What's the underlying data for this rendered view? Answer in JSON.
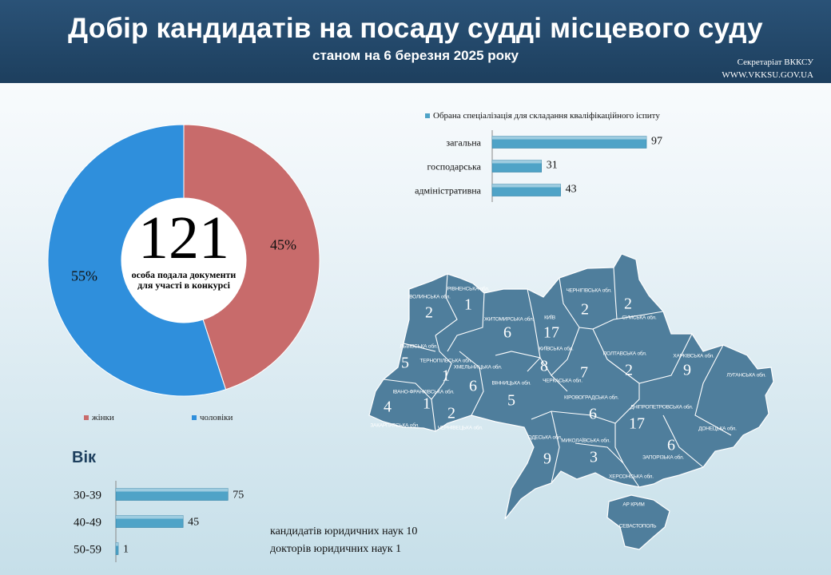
{
  "header": {
    "title": "Добір кандидатів на посаду судді місцевого суду",
    "subtitle": "станом на 6 березня 2025 року",
    "secretariat": "Секретаріат ВККСУ",
    "website": "WWW.VKKSU.GOV.UA"
  },
  "colors": {
    "header": "#1d3f5e",
    "women": "#c86b6b",
    "men": "#2f8fdc",
    "bar": "#4fa3c7",
    "map": "#4f7e9c"
  },
  "chart_data": [
    {
      "type": "pie",
      "categories": [
        "жінки",
        "чоловіки"
      ],
      "values": [
        45,
        55
      ],
      "labels": [
        "45%",
        "55%"
      ],
      "center_number": "121",
      "center_text_1": "особа подала документи",
      "center_text_2": "для участі в конкурсі",
      "legend": "bottom"
    },
    {
      "type": "bar",
      "orientation": "horizontal",
      "legend": "Обрана спеціалізація  для складання кваліфікаційного  іспиту",
      "categories": [
        "загальна",
        "господарська",
        "адміністративна"
      ],
      "values": [
        97,
        31,
        43
      ]
    },
    {
      "type": "bar",
      "orientation": "horizontal",
      "title": "Вік",
      "categories": [
        "30-39",
        "40-49",
        "50-59"
      ],
      "values": [
        75,
        45,
        1
      ]
    }
  ],
  "notes": {
    "line1": "кандидатів юридичних наук 10",
    "line2": "докторів  юридичних наук 1"
  },
  "map": {
    "regions": [
      {
        "name": "ВОЛИНСЬКА обл.",
        "value": "2"
      },
      {
        "name": "РІВНЕНСЬКА обл.",
        "value": "1"
      },
      {
        "name": "ЖИТОМИРСЬКА обл.",
        "value": "6"
      },
      {
        "name": "КИЇВ",
        "value": "17"
      },
      {
        "name": "ЧЕРНІГІВСЬКА обл.",
        "value": "2"
      },
      {
        "name": "СУМСЬКА обл.",
        "value": "2"
      },
      {
        "name": "ЛЬВІВСЬКА обл.",
        "value": "5"
      },
      {
        "name": "ТЕРНОПІЛЬСЬКА обл.",
        "value": "1"
      },
      {
        "name": "ХМЕЛЬНИЦЬКА обл.",
        "value": "6"
      },
      {
        "name": "КИЇВСЬКА обл.",
        "value": "8"
      },
      {
        "name": "ЧЕРКАСЬКА обл.",
        "value": "7"
      },
      {
        "name": "ПОЛТАВСЬКА обл.",
        "value": "2"
      },
      {
        "name": "ХАРКІВСЬКА обл.",
        "value": "9"
      },
      {
        "name": "ЛУГАНСЬКА обл.",
        "value": ""
      },
      {
        "name": "ІВАНО-ФРАНКІВСЬКА обл.",
        "value": "1"
      },
      {
        "name": "ЗАКАРПАТСЬКА обл.",
        "value": "4"
      },
      {
        "name": "ЧЕРНІВЕЦЬКА обл.",
        "value": "2"
      },
      {
        "name": "ВІННИЦЬКА обл.",
        "value": "5"
      },
      {
        "name": "КІРОВОГРАДСЬКА обл.",
        "value": "6"
      },
      {
        "name": "ДНІПРОПЕТРОВСЬКА обл.",
        "value": "17"
      },
      {
        "name": "ДОНЕЦЬКА обл.",
        "value": ""
      },
      {
        "name": "ОДЕСЬКА обл.",
        "value": "9"
      },
      {
        "name": "МИКОЛАЇВСЬКА обл.",
        "value": "3"
      },
      {
        "name": "ЗАПОРІЗЬКА обл.",
        "value": "6"
      },
      {
        "name": "ХЕРСОНСЬКА обл.",
        "value": ""
      },
      {
        "name": "АР КРИМ",
        "value": ""
      },
      {
        "name": "СЕВАСТОПОЛЬ",
        "value": ""
      }
    ]
  }
}
